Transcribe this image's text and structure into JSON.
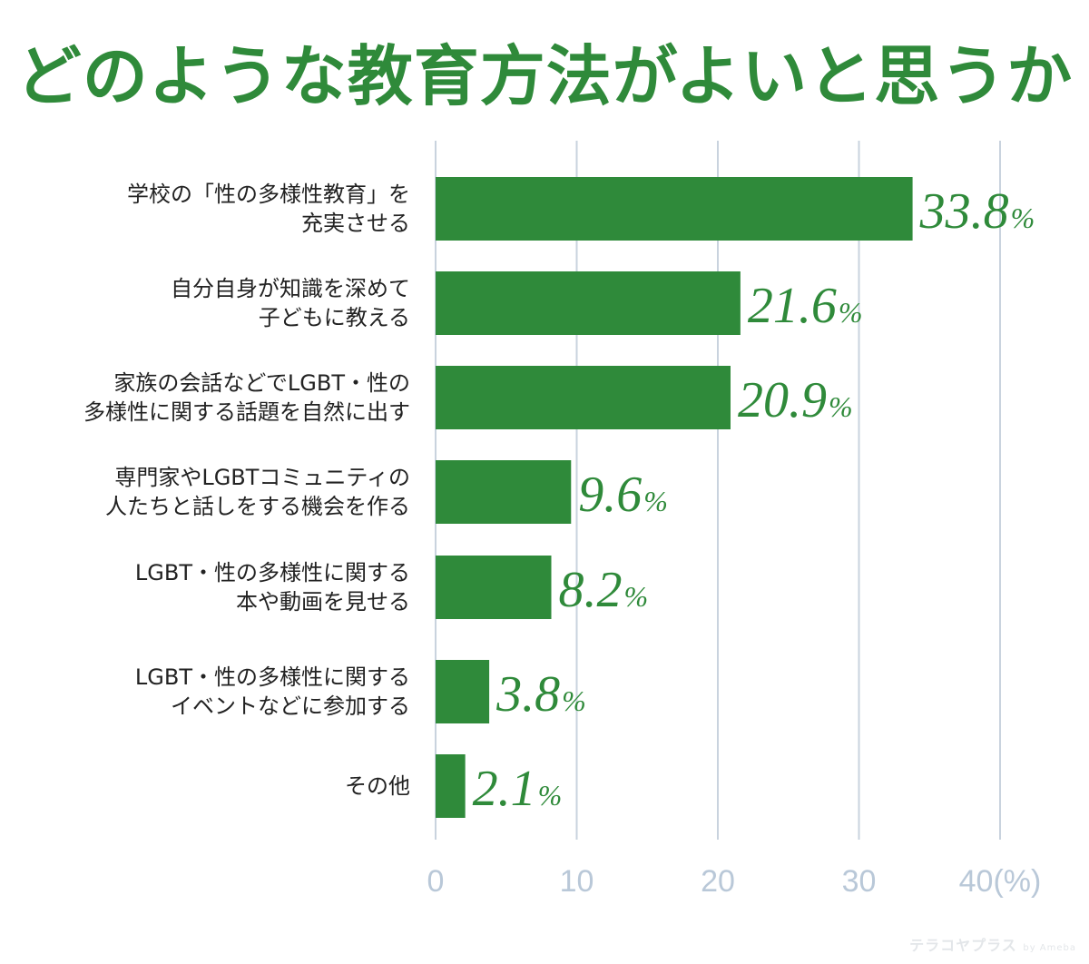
{
  "title": "どのような教育方法がよいと思うか",
  "watermark": {
    "brand": "テラコヤプラス",
    "by": "by Ameba"
  },
  "colors": {
    "bar": "#2f8a3a",
    "grid": "#c9d3de",
    "tick": "#b9c8d8",
    "title": "#2f8a3a"
  },
  "chart_data": {
    "type": "bar",
    "orientation": "horizontal",
    "title": "どのような教育方法がよいと思うか",
    "categories": [
      [
        "学校の「性の多様性教育」を",
        "充実させる"
      ],
      [
        "自分自身が知識を深めて",
        "子どもに教える"
      ],
      [
        "家族の会話などでLGBT・性の",
        "多様性に関する話題を自然に出す"
      ],
      [
        "専門家やLGBTコミュニティの",
        "人たちと話しをする機会を作る"
      ],
      [
        "LGBT・性の多様性に関する",
        "本や動画を見せる"
      ],
      [
        "LGBT・性の多様性に関する",
        "イベントなどに参加する"
      ],
      [
        "その他"
      ]
    ],
    "values": [
      33.8,
      21.6,
      20.9,
      9.6,
      8.2,
      3.8,
      2.1
    ],
    "value_labels": [
      "33.8",
      "21.6",
      "20.9",
      "9.6",
      "8.2",
      "3.8",
      "2.1"
    ],
    "value_unit": "%",
    "xlim": [
      0,
      40
    ],
    "x_ticks": [
      0,
      10,
      20,
      30,
      40
    ],
    "x_tick_labels": [
      "0",
      "10",
      "20",
      "30",
      "40(%)"
    ],
    "grid": true
  }
}
